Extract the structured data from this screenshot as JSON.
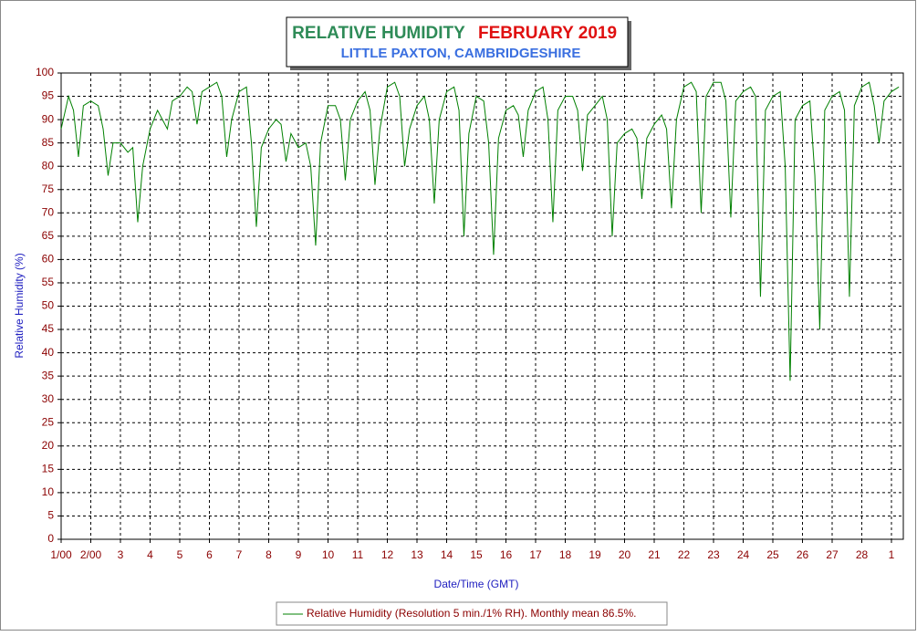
{
  "chart_data": {
    "type": "line",
    "title": "RELATIVE HUMIDITY",
    "title_period": "FEBRUARY 2019",
    "subtitle": "LITTLE PAXTON, CAMBRIDGESHIRE",
    "x_label": "Date/Time (GMT)",
    "y_label": "Relative Humidity (%)",
    "grid": true,
    "xlim": [
      1,
      29.4
    ],
    "ylim": [
      0,
      100
    ],
    "xticks": [
      {
        "value": 1,
        "label": "1/00"
      },
      {
        "value": 2,
        "label": "2/00"
      },
      3,
      4,
      5,
      6,
      7,
      8,
      9,
      10,
      11,
      12,
      13,
      14,
      15,
      16,
      17,
      18,
      19,
      20,
      21,
      22,
      23,
      24,
      25,
      26,
      27,
      28,
      {
        "value": 29,
        "label": "1"
      }
    ],
    "yticks": [
      0,
      5,
      10,
      15,
      20,
      25,
      30,
      35,
      40,
      45,
      50,
      55,
      60,
      65,
      70,
      75,
      80,
      85,
      90,
      95,
      100
    ],
    "x": [
      1,
      1.25,
      1.417,
      1.583,
      1.75,
      2,
      2.25,
      2.417,
      2.583,
      2.75,
      3,
      3.25,
      3.417,
      3.583,
      3.75,
      4,
      4.25,
      4.417,
      4.583,
      4.75,
      5,
      5.25,
      5.417,
      5.583,
      5.75,
      6,
      6.25,
      6.417,
      6.583,
      6.75,
      7,
      7.25,
      7.417,
      7.583,
      7.75,
      8,
      8.25,
      8.417,
      8.583,
      8.75,
      9,
      9.25,
      9.417,
      9.583,
      9.75,
      10,
      10.25,
      10.417,
      10.583,
      10.75,
      11,
      11.25,
      11.417,
      11.583,
      11.75,
      12,
      12.25,
      12.417,
      12.583,
      12.75,
      13,
      13.25,
      13.417,
      13.583,
      13.75,
      14,
      14.25,
      14.417,
      14.583,
      14.75,
      15,
      15.25,
      15.417,
      15.583,
      15.75,
      16,
      16.25,
      16.417,
      16.583,
      16.75,
      17,
      17.25,
      17.417,
      17.583,
      17.75,
      18,
      18.25,
      18.417,
      18.583,
      18.75,
      19,
      19.25,
      19.417,
      19.583,
      19.75,
      20,
      20.25,
      20.417,
      20.583,
      20.75,
      21,
      21.25,
      21.417,
      21.583,
      21.75,
      22,
      22.25,
      22.417,
      22.583,
      22.75,
      23,
      23.25,
      23.417,
      23.583,
      23.75,
      24,
      24.25,
      24.417,
      24.583,
      24.75,
      25,
      25.25,
      25.417,
      25.583,
      25.75,
      26,
      26.25,
      26.417,
      26.583,
      26.75,
      27,
      27.25,
      27.417,
      27.583,
      27.75,
      28,
      28.25,
      28.417,
      28.583,
      28.75,
      29,
      29.25
    ],
    "series": [
      {
        "name": "Relative Humidity (Resolution 5 min./1% RH). Monthly mean 86.5%.",
        "color": "#008000",
        "values": [
          88,
          95,
          92,
          82,
          93,
          94,
          93,
          88,
          78,
          85,
          85,
          83,
          84,
          68,
          80,
          88,
          92,
          90,
          88,
          94,
          95,
          97,
          96,
          89,
          96,
          97,
          98,
          95,
          82,
          90,
          96,
          97,
          85,
          67,
          84,
          88,
          90,
          89,
          81,
          87,
          84,
          85,
          80,
          63,
          85,
          93,
          93,
          90,
          77,
          90,
          94,
          96,
          92,
          76,
          88,
          97,
          98,
          95,
          80,
          88,
          93,
          95,
          90,
          72,
          90,
          96,
          97,
          92,
          65,
          87,
          95,
          94,
          85,
          61,
          86,
          92,
          93,
          91,
          82,
          92,
          96,
          97,
          90,
          68,
          92,
          95,
          95,
          92,
          79,
          91,
          93,
          95,
          90,
          65,
          85,
          87,
          88,
          86,
          73,
          86,
          89,
          91,
          88,
          71,
          90,
          97,
          98,
          96,
          70,
          95,
          98,
          98,
          94,
          69,
          94,
          96,
          97,
          95,
          52,
          92,
          95,
          96,
          80,
          34,
          90,
          93,
          94,
          78,
          45,
          92,
          95,
          96,
          92,
          52,
          93,
          97,
          98,
          93,
          85,
          94,
          96,
          97
        ]
      }
    ]
  }
}
